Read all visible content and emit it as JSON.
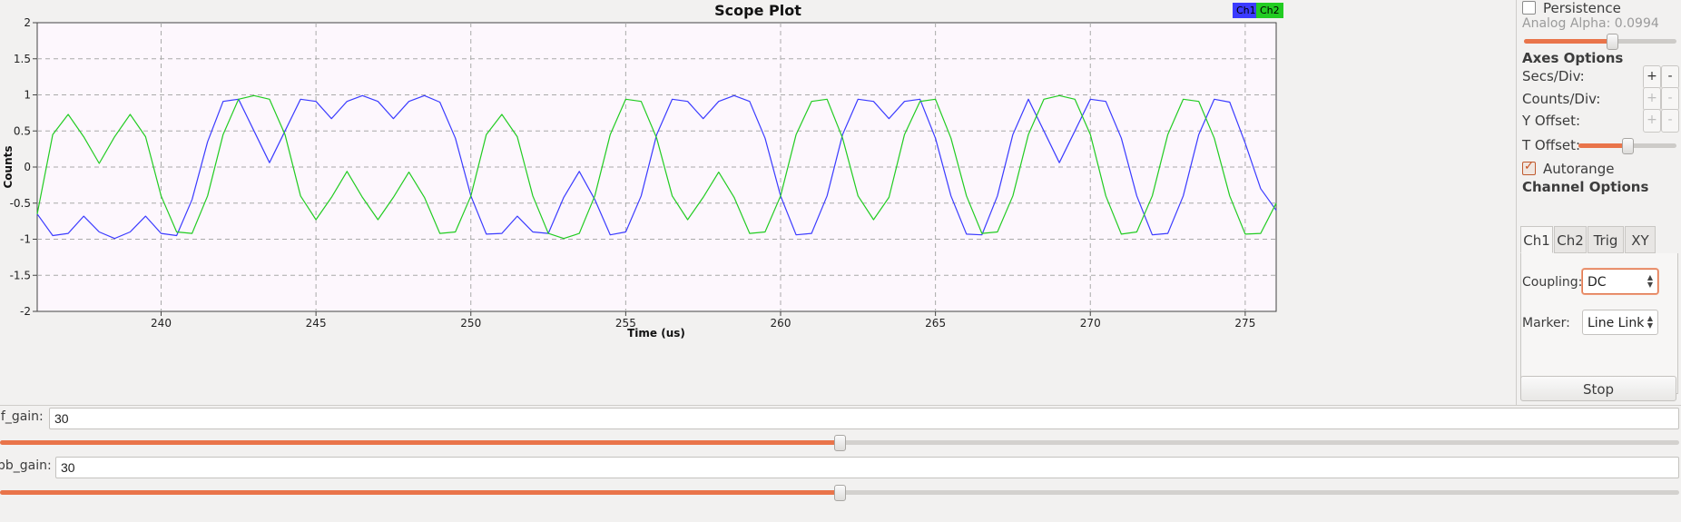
{
  "plot": {
    "title": "Scope Plot",
    "legend": [
      {
        "label": "Ch1",
        "color": "#3b3bff"
      },
      {
        "label": "Ch2",
        "color": "#22cc22"
      }
    ]
  },
  "chart_data": {
    "type": "line",
    "title": "Scope Plot",
    "xlabel": "Time (us)",
    "ylabel": "Counts",
    "xlim": [
      236,
      276
    ],
    "ylim": [
      -2,
      2
    ],
    "xticks": [
      240,
      245,
      250,
      255,
      260,
      265,
      270,
      275
    ],
    "yticks": [
      2,
      1.5,
      1,
      0.5,
      0,
      -0.5,
      -1,
      -1.5,
      -2
    ],
    "grid": true,
    "background": "#fdf7fd",
    "x": [
      236.0,
      236.5,
      237.0,
      237.5,
      238.0,
      238.5,
      239.0,
      239.5,
      240.0,
      240.5,
      241.0,
      241.5,
      242.0,
      242.5,
      243.0,
      243.5,
      244.0,
      244.5,
      245.0,
      245.5,
      246.0,
      246.5,
      247.0,
      247.5,
      248.0,
      248.5,
      249.0,
      249.5,
      250.0,
      250.5,
      251.0,
      251.5,
      252.0,
      252.5,
      253.0,
      253.5,
      254.0,
      254.5,
      255.0,
      255.5,
      256.0,
      256.5,
      257.0,
      257.5,
      258.0,
      258.5,
      259.0,
      259.5,
      260.0,
      260.5,
      261.0,
      261.5,
      262.0,
      262.5,
      263.0,
      263.5,
      264.0,
      264.5,
      265.0,
      265.5,
      266.0,
      266.5,
      267.0,
      267.5,
      268.0,
      268.5,
      269.0,
      269.5,
      270.0,
      270.5,
      271.0,
      271.5,
      272.0,
      272.5,
      273.0,
      273.5,
      274.0,
      274.5,
      275.0,
      275.5,
      276.0
    ],
    "series": [
      {
        "name": "Ch1",
        "color": "#3b3bff",
        "values": [
          -0.65,
          -0.95,
          -0.92,
          -0.68,
          -0.9,
          -0.99,
          -0.9,
          -0.68,
          -0.92,
          -0.95,
          -0.45,
          0.35,
          0.91,
          0.94,
          0.5,
          0.06,
          0.5,
          0.94,
          0.91,
          0.67,
          0.91,
          0.99,
          0.91,
          0.67,
          0.91,
          0.99,
          0.9,
          0.4,
          -0.4,
          -0.93,
          -0.92,
          -0.68,
          -0.9,
          -0.92,
          -0.42,
          -0.06,
          -0.45,
          -0.94,
          -0.9,
          -0.4,
          0.45,
          0.94,
          0.91,
          0.67,
          0.91,
          0.99,
          0.91,
          0.4,
          -0.4,
          -0.94,
          -0.92,
          -0.4,
          0.45,
          0.94,
          0.91,
          0.67,
          0.91,
          0.94,
          0.4,
          -0.4,
          -0.93,
          -0.94,
          -0.4,
          0.45,
          0.94,
          0.5,
          0.06,
          0.5,
          0.94,
          0.91,
          0.4,
          -0.4,
          -0.94,
          -0.92,
          -0.4,
          0.45,
          0.94,
          0.9,
          0.33,
          -0.3,
          -0.6
        ]
      },
      {
        "name": "Ch2",
        "color": "#22cc22",
        "values": [
          -0.65,
          0.45,
          0.73,
          0.42,
          0.05,
          0.42,
          0.73,
          0.42,
          -0.4,
          -0.9,
          -0.92,
          -0.4,
          0.45,
          0.94,
          0.99,
          0.94,
          0.45,
          -0.4,
          -0.73,
          -0.42,
          -0.06,
          -0.42,
          -0.73,
          -0.42,
          -0.07,
          -0.42,
          -0.92,
          -0.9,
          -0.4,
          0.45,
          0.73,
          0.42,
          -0.4,
          -0.92,
          -0.99,
          -0.92,
          -0.4,
          0.45,
          0.94,
          0.91,
          0.4,
          -0.4,
          -0.73,
          -0.42,
          -0.07,
          -0.42,
          -0.92,
          -0.9,
          -0.4,
          0.45,
          0.91,
          0.94,
          0.4,
          -0.4,
          -0.73,
          -0.42,
          0.45,
          0.91,
          0.94,
          0.4,
          -0.4,
          -0.92,
          -0.9,
          -0.4,
          0.45,
          0.94,
          0.99,
          0.94,
          0.45,
          -0.4,
          -0.93,
          -0.9,
          -0.4,
          0.45,
          0.94,
          0.91,
          0.4,
          -0.4,
          -0.93,
          -0.92,
          -0.5
        ]
      }
    ]
  },
  "side_panel": {
    "persistence_label": "Persistence",
    "persistence_checked": false,
    "analog_alpha_label": "Analog Alpha: 0.0994",
    "analog_alpha_level": 0.58,
    "axes_options_title": "Axes Options",
    "secs_div_label": "Secs/Div:",
    "counts_div_label": "Counts/Div:",
    "y_offset_label": "Y Offset:",
    "t_offset_label": "T Offset:",
    "t_offset_level": 0.5,
    "plus": "+",
    "minus": "-",
    "autorange_label": "Autorange",
    "autorange_checked": true,
    "channel_options_title": "Channel Options",
    "tabs": [
      "Ch1",
      "Ch2",
      "Trig",
      "XY"
    ],
    "active_tab": "Ch1",
    "coupling_label": "Coupling:",
    "coupling_value": "DC",
    "marker_label": "Marker:",
    "marker_value": "Line Link",
    "stop_label": "Stop"
  },
  "controls": {
    "if_gain_label": "if_gain:",
    "if_gain_value": "30",
    "if_gain_level": 0.5,
    "bb_gain_label": "bb_gain:",
    "bb_gain_value": "30",
    "bb_gain_level": 0.5
  },
  "colors": {
    "accent": "#e9744a",
    "ch1": "#3b3bff",
    "ch2": "#22cc22"
  }
}
